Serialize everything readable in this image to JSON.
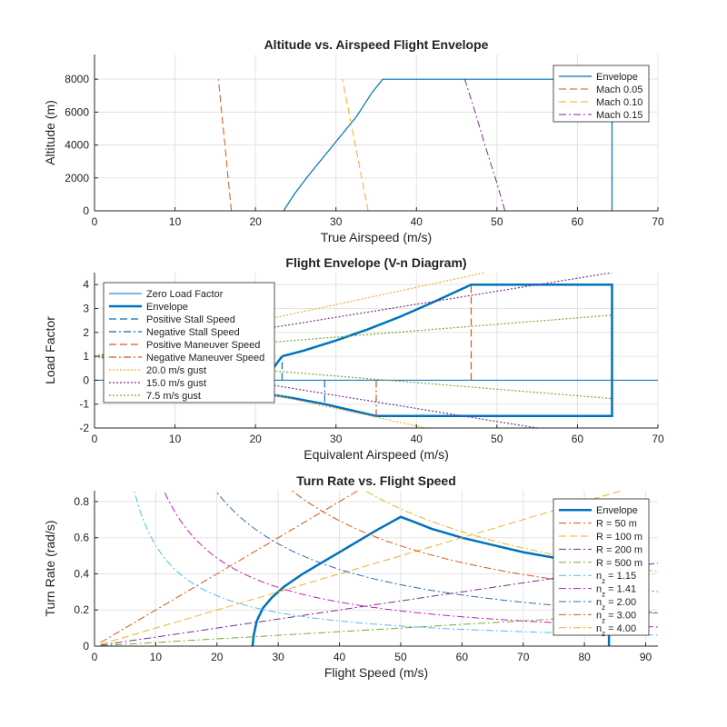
{
  "chart_data": [
    {
      "type": "line",
      "title": "Altitude vs. Airspeed Flight Envelope",
      "xlabel": "True Airspeed (m/s)",
      "ylabel": "Altitude (m)",
      "xlim": [
        0,
        70
      ],
      "ylim": [
        0,
        9500
      ],
      "xticks": [
        0,
        10,
        20,
        30,
        40,
        50,
        60,
        70
      ],
      "yticks": [
        0,
        2000,
        4000,
        6000,
        8000
      ],
      "grid": true,
      "legend_position": "top-right",
      "series": [
        {
          "name": "Envelope",
          "color": "#0072BD",
          "style": "solid",
          "width": 1.2,
          "x": [
            23.5,
            24.8,
            26.5,
            28.5,
            30.5,
            32.5,
            34.5,
            35.8,
            64.3,
            64.3
          ],
          "y": [
            0,
            1000,
            2100,
            3300,
            4500,
            5700,
            7200,
            8000,
            8000,
            0
          ]
        },
        {
          "name": "Mach 0.05",
          "color": "#D95319",
          "style": "dashed",
          "width": 1,
          "x": [
            17.0,
            16.6,
            16.2,
            15.8,
            15.4
          ],
          "y": [
            0,
            2000,
            4000,
            6000,
            8000
          ]
        },
        {
          "name": "Mach 0.10",
          "color": "#EDB120",
          "style": "dashed",
          "width": 1,
          "x": [
            34.0,
            33.2,
            32.4,
            31.6,
            30.8
          ],
          "y": [
            0,
            2000,
            4000,
            6000,
            8000
          ]
        },
        {
          "name": "Mach 0.15",
          "color": "#7E2F8E",
          "style": "dashdot",
          "width": 1,
          "x": [
            51.0,
            49.8,
            48.5,
            47.3,
            46.0
          ],
          "y": [
            0,
            2000,
            4000,
            6000,
            8000
          ]
        }
      ]
    },
    {
      "type": "line",
      "title": "Flight Envelope (V-n Diagram)",
      "xlabel": "Equivalent Airspeed (m/s)",
      "ylabel": "Load Factor",
      "xlim": [
        0,
        70
      ],
      "ylim": [
        -2,
        4.5
      ],
      "xticks": [
        0,
        10,
        20,
        30,
        40,
        50,
        60,
        70
      ],
      "yticks": [
        -2,
        -1,
        0,
        1,
        2,
        3,
        4
      ],
      "grid": true,
      "legend_position": "top-left",
      "series": [
        {
          "name": "Zero Load Factor",
          "color": "#0072BD",
          "style": "solid",
          "width": 1,
          "x": [
            0,
            71
          ],
          "y": [
            0,
            0
          ]
        },
        {
          "name": "Envelope",
          "color": "#0072BD",
          "style": "solid",
          "width": 2.5,
          "x": [
            23.3,
            26,
            30,
            34,
            38,
            42,
            46.8,
            64.3,
            64.3,
            35,
            28.6,
            25,
            20,
            23.3
          ],
          "y": [
            1,
            1.24,
            1.66,
            2.13,
            2.66,
            3.25,
            4,
            4,
            -1.5,
            -1.5,
            -1,
            -0.77,
            -0.5,
            1
          ]
        },
        {
          "name": "Positive Stall Speed",
          "color": "#0072BD",
          "style": "dashed",
          "width": 1.2,
          "x": [
            23.3,
            23.3
          ],
          "y": [
            0,
            1
          ]
        },
        {
          "name": "Negative Stall Speed",
          "color": "#0072BD",
          "style": "dashdot",
          "width": 1.2,
          "x": [
            28.6,
            28.6
          ],
          "y": [
            0,
            -1
          ]
        },
        {
          "name": "Positive Maneuver Speed",
          "color": "#D95319",
          "style": "dashed",
          "width": 1.2,
          "x": [
            46.8,
            46.8
          ],
          "y": [
            0,
            4
          ]
        },
        {
          "name": "Negative Maneuver Speed",
          "color": "#D95319",
          "style": "dashdot",
          "width": 1.2,
          "x": [
            35,
            35
          ],
          "y": [
            0,
            -1.5
          ]
        },
        {
          "name": "20.0 m/s gust",
          "color": "#EDB120",
          "style": "dotted",
          "width": 1.2,
          "x": [
            0,
            48.5
          ],
          "y": [
            1,
            4.5
          ]
        },
        {
          "name": "15.0 m/s gust",
          "color": "#7E2F8E",
          "style": "dotted",
          "width": 1.2,
          "x": [
            0,
            64.3
          ],
          "y": [
            1,
            4.5
          ]
        },
        {
          "name": "7.5 m/s gust",
          "color": "#77AC30",
          "style": "dotted",
          "width": 1.2,
          "x": [
            0,
            64.3
          ],
          "y": [
            1,
            2.72
          ]
        },
        {
          "name": "",
          "color": "#EDB120",
          "style": "dotted",
          "width": 1.2,
          "x": [
            0,
            41.2
          ],
          "y": [
            1,
            -2
          ]
        },
        {
          "name": "",
          "color": "#7E2F8E",
          "style": "dotted",
          "width": 1.2,
          "x": [
            0,
            55
          ],
          "y": [
            1,
            -2
          ]
        },
        {
          "name": "",
          "color": "#77AC30",
          "style": "dotted",
          "width": 1.2,
          "x": [
            0,
            64.3
          ],
          "y": [
            1,
            -0.77
          ]
        }
      ]
    },
    {
      "type": "line",
      "title": "Turn Rate vs. Flight Speed",
      "xlabel": "Flight Speed (m/s)",
      "ylabel": "Turn Rate (rad/s)",
      "xlim": [
        0,
        92
      ],
      "ylim": [
        0,
        0.86
      ],
      "xticks": [
        0,
        10,
        20,
        30,
        40,
        50,
        60,
        70,
        80,
        90
      ],
      "yticks": [
        0,
        0.2,
        0.4,
        0.6,
        0.8
      ],
      "grid": true,
      "legend_position": "top-right",
      "series": [
        {
          "name": "Envelope",
          "color": "#0072BD",
          "style": "solid",
          "width": 2.5,
          "x": [
            25.8,
            26,
            26.5,
            27.5,
            29,
            31,
            34,
            38,
            42,
            46,
            50,
            52,
            55,
            60,
            65,
            70,
            75,
            80
          ],
          "y": [
            0,
            0.06,
            0.14,
            0.21,
            0.27,
            0.33,
            0.4,
            0.48,
            0.56,
            0.64,
            0.715,
            0.69,
            0.65,
            0.6,
            0.56,
            0.52,
            0.49,
            0.46
          ]
        },
        {
          "name": "R = 50 m",
          "color": "#D95319",
          "style": "dashdot",
          "width": 1,
          "kind": "radius",
          "param": 50
        },
        {
          "name": "R = 100 m",
          "color": "#EDB120",
          "style": "dashed",
          "width": 1,
          "kind": "radius",
          "param": 100
        },
        {
          "name": "R = 200 m",
          "color": "#7E2F8E",
          "style": "dashdot",
          "width": 1,
          "kind": "radius",
          "param": 200
        },
        {
          "name": "R = 500 m",
          "color": "#77AC30",
          "style": "dashdot",
          "width": 1,
          "kind": "radius",
          "param": 500
        },
        {
          "name": "n_z = 1.15",
          "color": "#4DBEEE",
          "style": "dashdot",
          "width": 1,
          "kind": "load",
          "param": 1.15
        },
        {
          "name": "n_z = 1.41",
          "color": "#C21EB4",
          "style": "dashdot",
          "width": 1,
          "kind": "load",
          "param": 1.41
        },
        {
          "name": "n_z = 2.00",
          "color": "#2A6FA8",
          "style": "dashdot",
          "width": 1,
          "kind": "load",
          "param": 2.0
        },
        {
          "name": "n_z = 3.00",
          "color": "#D95319",
          "style": "dashdot",
          "width": 1,
          "kind": "load",
          "param": 3.0
        },
        {
          "name": "n_z = 4.00",
          "color": "#EDB120",
          "style": "dashdot",
          "width": 1,
          "kind": "load",
          "param": 4.0
        },
        {
          "name": "",
          "color": "#0072BD",
          "style": "solid",
          "width": 2.5,
          "x": [
            84,
            84
          ],
          "y": [
            0,
            0.46
          ]
        }
      ]
    }
  ]
}
